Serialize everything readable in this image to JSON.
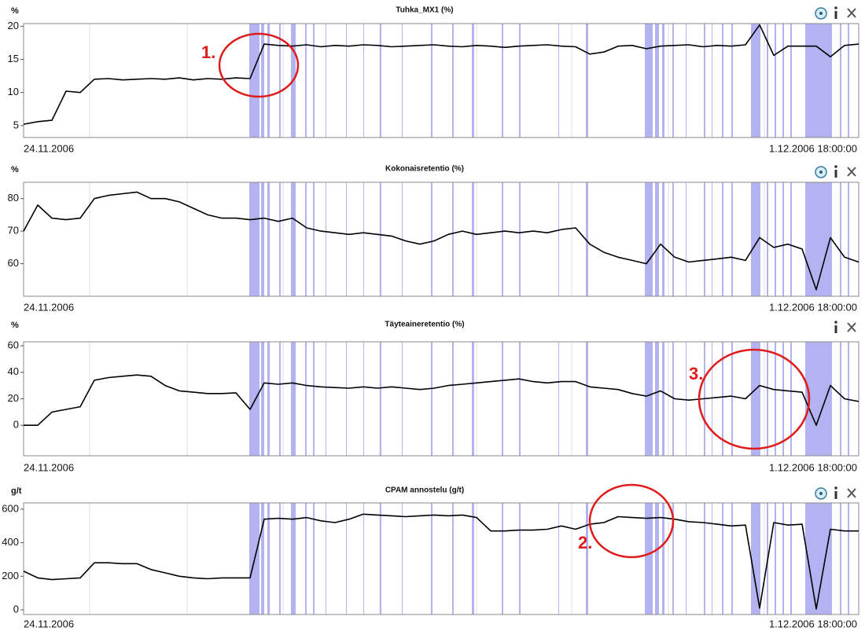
{
  "chart_data": [
    {
      "type": "line",
      "title": "Tuhka_MX1 (%)",
      "unit": "%",
      "annotation": "1.",
      "color": "#000000",
      "ylim": [
        3.2,
        20.4
      ],
      "yticks": [
        5,
        10,
        15,
        20
      ],
      "categories": [
        "24.11.2006",
        null,
        null,
        null,
        null,
        null,
        null,
        null,
        null,
        null,
        null,
        null,
        null,
        null,
        null,
        null,
        null,
        null,
        null,
        null,
        null,
        null,
        null,
        null,
        null,
        null,
        null,
        null,
        null,
        null,
        null,
        null,
        null,
        null,
        null,
        null,
        null,
        null,
        null,
        null,
        null,
        null,
        null,
        null,
        null,
        null,
        null,
        null,
        null,
        null,
        null,
        null,
        null,
        null,
        null,
        null,
        null,
        null,
        null,
        "1.12.2006 18:00:00"
      ],
      "values": [
        5.2,
        5.6,
        5.8,
        10.2,
        10,
        12,
        12.1,
        11.9,
        12,
        12.1,
        12,
        12.2,
        11.9,
        12.1,
        12,
        12.2,
        12.1,
        17.3,
        17.1,
        17,
        17.2,
        16.9,
        17.1,
        17,
        17.2,
        17.1,
        16.9,
        17,
        17.1,
        17.2,
        17,
        16.9,
        17.1,
        17,
        16.8,
        17,
        17.1,
        17.2,
        17,
        16.9,
        15.8,
        16.1,
        17,
        17.1,
        16.6,
        17,
        17.1,
        17.2,
        16.9,
        17.1,
        17,
        17.2,
        20.2,
        15.6,
        17,
        17,
        17,
        15.4,
        17.1,
        17.3
      ]
    },
    {
      "type": "line",
      "title": "Kokonaisretentio (%)",
      "unit": "%",
      "color": "#000000",
      "ylim": [
        50,
        85
      ],
      "yticks": [
        60,
        70,
        80
      ],
      "categories": [
        "24.11.2006",
        null,
        null,
        null,
        null,
        null,
        null,
        null,
        null,
        null,
        null,
        null,
        null,
        null,
        null,
        null,
        null,
        null,
        null,
        null,
        null,
        null,
        null,
        null,
        null,
        null,
        null,
        null,
        null,
        null,
        null,
        null,
        null,
        null,
        null,
        null,
        null,
        null,
        null,
        null,
        null,
        null,
        null,
        null,
        null,
        null,
        null,
        null,
        null,
        null,
        null,
        null,
        null,
        null,
        null,
        null,
        null,
        null,
        null,
        "1.12.2006 18:00:00"
      ],
      "values": [
        70,
        78,
        74,
        73.5,
        74,
        80,
        81,
        81.5,
        82,
        80,
        80,
        79,
        77,
        75,
        74,
        74,
        73.5,
        74,
        73,
        74,
        71,
        70,
        69.5,
        69,
        69.5,
        69,
        68.5,
        67,
        66,
        67,
        69,
        70,
        69,
        69.5,
        70,
        69.5,
        70,
        69.5,
        70.5,
        71,
        66,
        63.5,
        62,
        61,
        60,
        66,
        62,
        60.5,
        61,
        61.5,
        62,
        61,
        68,
        65,
        66,
        64.5,
        52,
        68,
        62,
        60.5
      ]
    },
    {
      "type": "line",
      "title": "Täyteaineretentio (%)",
      "unit": "%",
      "annotation": "3.",
      "color": "#000000",
      "ylim": [
        -23,
        63
      ],
      "yticks": [
        0,
        20,
        40,
        60
      ],
      "categories": [
        "24.11.2006",
        null,
        null,
        null,
        null,
        null,
        null,
        null,
        null,
        null,
        null,
        null,
        null,
        null,
        null,
        null,
        null,
        null,
        null,
        null,
        null,
        null,
        null,
        null,
        null,
        null,
        null,
        null,
        null,
        null,
        null,
        null,
        null,
        null,
        null,
        null,
        null,
        null,
        null,
        null,
        null,
        null,
        null,
        null,
        null,
        null,
        null,
        null,
        null,
        null,
        null,
        null,
        null,
        null,
        null,
        null,
        null,
        null,
        null,
        "1.12.2006 18:00:00"
      ],
      "values": [
        0,
        0,
        10,
        12,
        14,
        34,
        36,
        37,
        38,
        37,
        30,
        26,
        25,
        24,
        24,
        24.5,
        12,
        32,
        31,
        32,
        30,
        29,
        28.5,
        28,
        29,
        28,
        29,
        28,
        27,
        28,
        30,
        31,
        32,
        33,
        34,
        35,
        33,
        32,
        33,
        33,
        29,
        28,
        27,
        24,
        22,
        26,
        20,
        19,
        20,
        21,
        22,
        20,
        30,
        27,
        26,
        25,
        0,
        30,
        20,
        18
      ]
    },
    {
      "type": "line",
      "title": "CPAM annostelu (g/t)",
      "unit": "g/t",
      "annotation": "2.",
      "color": "#000000",
      "ylim": [
        -28,
        637
      ],
      "yticks": [
        0,
        200,
        400,
        600
      ],
      "categories": [
        "24.11.2006",
        null,
        null,
        null,
        null,
        null,
        null,
        null,
        null,
        null,
        null,
        null,
        null,
        null,
        null,
        null,
        null,
        null,
        null,
        null,
        null,
        null,
        null,
        null,
        null,
        null,
        null,
        null,
        null,
        null,
        null,
        null,
        null,
        null,
        null,
        null,
        null,
        null,
        null,
        null,
        null,
        null,
        null,
        null,
        null,
        null,
        null,
        null,
        null,
        null,
        null,
        null,
        null,
        null,
        null,
        null,
        null,
        null,
        null,
        "1.12.2006 18:00:00"
      ],
      "values": [
        230,
        190,
        180,
        185,
        190,
        280,
        280,
        275,
        275,
        240,
        220,
        200,
        190,
        185,
        190,
        190,
        190,
        540,
        545,
        540,
        550,
        530,
        520,
        540,
        570,
        565,
        560,
        555,
        560,
        565,
        560,
        565,
        550,
        470,
        470,
        475,
        475,
        480,
        500,
        480,
        510,
        520,
        555,
        550,
        545,
        550,
        540,
        525,
        520,
        510,
        500,
        505,
        10,
        520,
        505,
        510,
        5,
        480,
        470,
        470
      ]
    }
  ]
}
